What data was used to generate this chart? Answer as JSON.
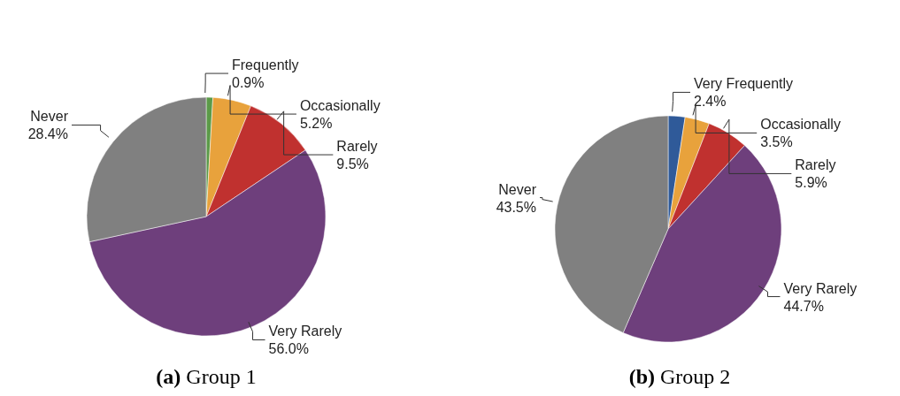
{
  "chart_data": [
    {
      "type": "pie",
      "title": "(a) Group 1",
      "categories": [
        "Frequently",
        "Occasionally",
        "Rarely",
        "Very Rarely",
        "Never"
      ],
      "values": [
        0.9,
        5.2,
        9.5,
        56.0,
        28.4
      ],
      "colors": [
        "#5b9a48",
        "#e8a23c",
        "#c0312f",
        "#6e3f7c",
        "#808080"
      ],
      "value_labels": [
        "0.9%",
        "5.2%",
        "9.5%",
        "56.0%",
        "28.4%"
      ]
    },
    {
      "type": "pie",
      "title": "(b) Group 2",
      "categories": [
        "Very Frequently",
        "Occasionally",
        "Rarely",
        "Very Rarely",
        "Never"
      ],
      "values": [
        2.4,
        3.5,
        5.9,
        44.7,
        43.5
      ],
      "colors": [
        "#2f5a99",
        "#e8a23c",
        "#c0312f",
        "#6e3f7c",
        "#808080"
      ],
      "value_labels": [
        "2.4%",
        "3.5%",
        "5.9%",
        "44.7%",
        "43.5%"
      ]
    }
  ]
}
